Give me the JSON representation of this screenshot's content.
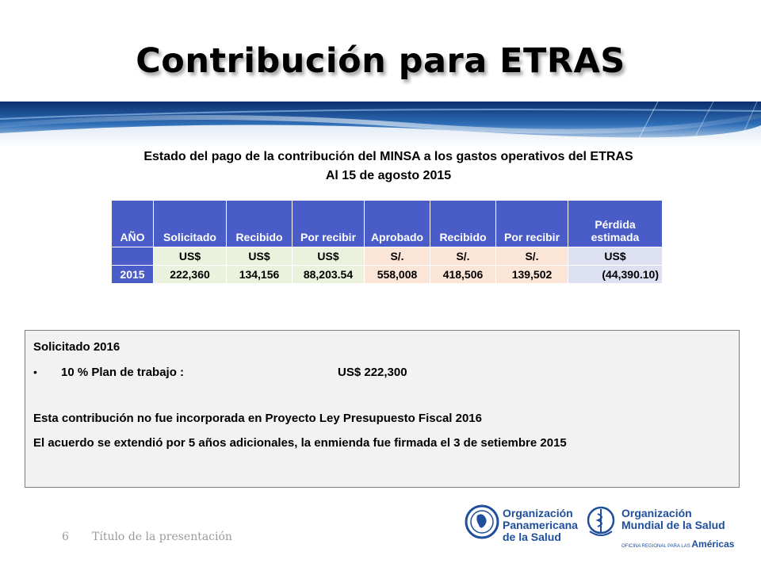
{
  "title": "Contribución para ETRAS",
  "subtitle": {
    "line1": "Estado del pago de la contribución del MINSA a los gastos operativos del ETRAS",
    "line2": "Al 15 de agosto 2015"
  },
  "table": {
    "headers": [
      "AÑO",
      "Solicitado",
      "Recibido",
      "Por recibir",
      "Aprobado",
      "Recibido",
      "Por recibir",
      "Pérdida estimada"
    ],
    "loss_header_line1": "Pérdida",
    "loss_header_line2": "estimada",
    "currency_row": [
      "",
      "US$",
      "US$",
      "US$",
      "S/.",
      "S/.",
      "S/.",
      "US$"
    ],
    "rows": [
      [
        "2015",
        "222,360",
        "134,156",
        "88,203.54",
        "558,008",
        "418,506",
        "139,502",
        "(44,390.10)"
      ]
    ]
  },
  "box": {
    "heading": "Solicitado  2016",
    "bullet_label": "10 % Plan de trabajo :",
    "bullet_value": "US$   222,300",
    "para1": "Esta contribución  no fue incorporada  en Proyecto Ley Presupuesto  Fiscal 2016",
    "para2": "El acuerdo se extendió por 5 años adicionales,  la enmienda fue firmada el 3 de setiembre 2015"
  },
  "footer": {
    "page_number": "6",
    "presentation_title": "Título de la presentación"
  },
  "logos": {
    "paho_line1": "Organización",
    "paho_line2": "Panamericana",
    "paho_line3": "de la Salud",
    "who_line1": "Organización",
    "who_line2": "Mundial de la Salud",
    "who_small": "OFICINA REGIONAL PARA LAS",
    "who_region": "Américas"
  },
  "colors": {
    "header_blue": "#4a5cc8",
    "usd_green": "#eaf1dd",
    "sol_peach": "#fbe5d6",
    "loss_lavender": "#dde0f0",
    "logo_blue": "#1f4e9b"
  }
}
